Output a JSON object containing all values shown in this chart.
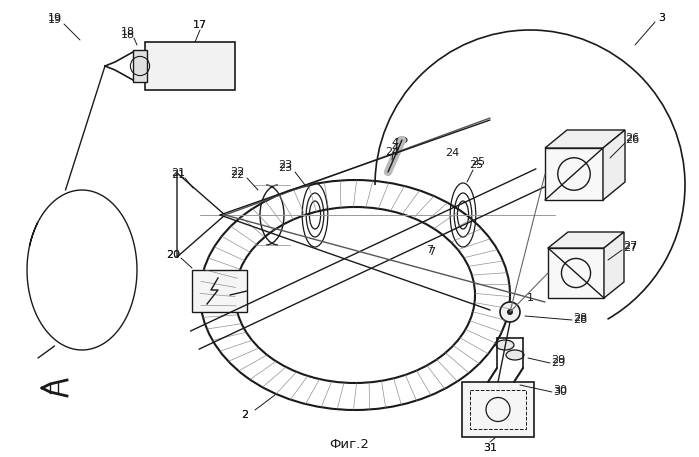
{
  "title": "Фиг.2",
  "bg_color": "#ffffff",
  "line_color": "#1a1a1a"
}
